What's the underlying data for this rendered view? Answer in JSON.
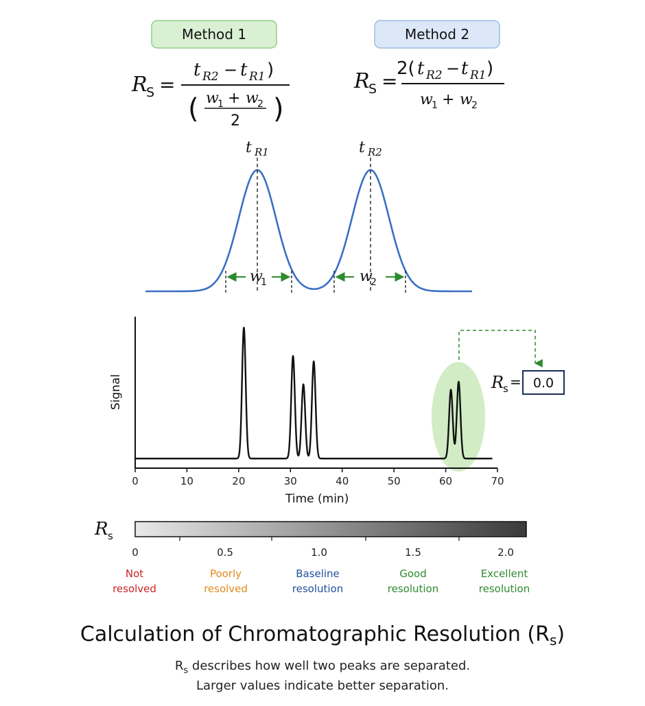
{
  "methods": [
    {
      "label": "Method 1",
      "fill": "#d9f0d3",
      "stroke": "#8fcf87",
      "formula": {
        "lhs": "R",
        "lhs_sub": "S",
        "equals": "=",
        "numerator": "t_R2 − t_R1",
        "denominator": "(w1 + w2) / 2"
      }
    },
    {
      "label": "Method 2",
      "fill": "#dce8f7",
      "stroke": "#9dbbe3",
      "formula": {
        "lhs": "R",
        "lhs_sub": "S",
        "equals": "=",
        "numerator": "2(t_R2 − t_R1)",
        "denominator": "w1 + w2"
      }
    }
  ],
  "peak_diagram": {
    "peak1_label": "t",
    "peak1_sub": "R1",
    "peak2_label": "t",
    "peak2_sub": "R2",
    "width1_label": "w",
    "width1_sub": "1",
    "width2_label": "w",
    "width2_sub": "2",
    "curve_color": "#3a6fc4",
    "arrow_color": "#2e8b2e"
  },
  "chart_data": {
    "type": "line",
    "xlabel": "Time (min)",
    "ylabel": "Signal",
    "xlim": [
      0,
      70
    ],
    "x_ticks": [
      0,
      10,
      20,
      30,
      40,
      50,
      60,
      70
    ],
    "peaks": [
      {
        "time": 21.0,
        "height": 0.97
      },
      {
        "time": 30.5,
        "height": 0.76
      },
      {
        "time": 32.5,
        "height": 0.55
      },
      {
        "time": 34.5,
        "height": 0.72
      },
      {
        "time": 61.0,
        "height": 0.51
      },
      {
        "time": 62.5,
        "height": 0.57
      }
    ],
    "highlight_pair": [
      61.0,
      62.5
    ],
    "highlight_color": "#cdeabf",
    "rs_label": "R",
    "rs_sub": "s",
    "rs_equals": "=",
    "rs_value": "0.0"
  },
  "scale": {
    "label": "R",
    "label_sub": "s",
    "ticks": [
      "0",
      "0.5",
      "1.0",
      "1.5",
      "2.0"
    ],
    "categories": [
      {
        "line1": "Not",
        "line2": "resolved",
        "color": "#cc2222"
      },
      {
        "line1": "Poorly",
        "line2": "resolved",
        "color": "#e08a1e"
      },
      {
        "line1": "Baseline",
        "line2": "resolution",
        "color": "#1f4e9c"
      },
      {
        "line1": "Good",
        "line2": "resolution",
        "color": "#2e8b2e"
      },
      {
        "line1": "Excellent",
        "line2": "resolution",
        "color": "#2e8b2e"
      }
    ]
  },
  "title": "Calculation of Chromatographic Resolution (R",
  "title_sub": "s",
  "title_end": ")",
  "subtitle_line1_sym": "R",
  "subtitle_line1_sub": "s",
  "subtitle_line1_rest": " describes how well two peaks are separated.",
  "subtitle_line2": "Larger values indicate better separation."
}
